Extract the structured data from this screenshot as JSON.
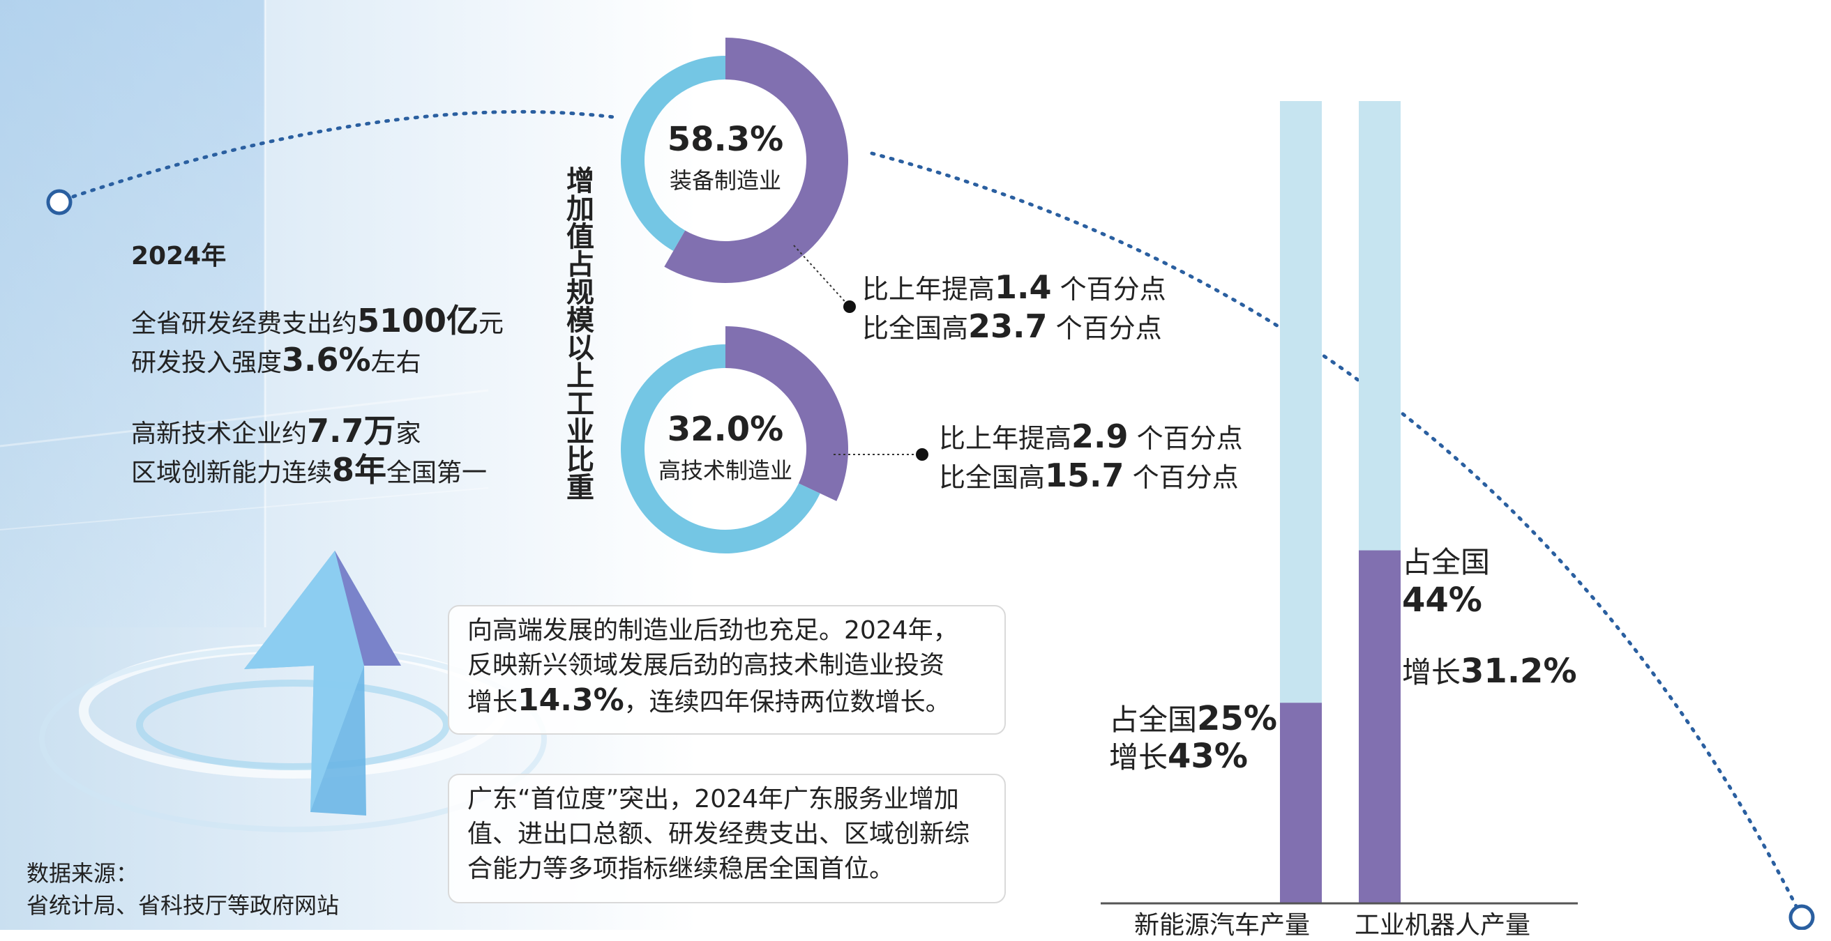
{
  "year_label": "2024年",
  "stats": {
    "line1_prefix": "全省研发经费支出约",
    "line1_value": "5100亿",
    "line1_suffix": "元",
    "line2_prefix": "研发投入强度",
    "line2_value": "3.6%",
    "line2_suffix": "左右",
    "line3_prefix": "高新技术企业约",
    "line3_value": "7.7万",
    "line3_suffix": "家",
    "line4_prefix": "区域创新能力连续",
    "line4_value": "8年",
    "line4_suffix": "全国第一"
  },
  "vertical_title": "增加值占规模以上工业比重",
  "donut_equipment": {
    "pct_text": "58.3%",
    "label": "装备制造业",
    "cmp1_prefix": "比上年提高",
    "cmp1_value": "1.4",
    "cmp1_suffix": "个百分点",
    "cmp2_prefix": "比全国高",
    "cmp2_value": "23.7",
    "cmp2_suffix": "个百分点"
  },
  "donut_hightech": {
    "pct_text": "32.0%",
    "label": "高技术制造业",
    "cmp1_prefix": "比上年提高",
    "cmp1_value": "2.9",
    "cmp1_suffix": "个百分点",
    "cmp2_prefix": "比全国高",
    "cmp2_value": "15.7",
    "cmp2_suffix": "个百分点"
  },
  "box1": {
    "line1": "向高端发展的制造业后劲也充足。2024年，",
    "line2": "反映新兴领域发展后劲的高技术制造业投资",
    "line3_prefix": "增长",
    "line3_value": "14.3%",
    "line3_suffix": "，连续四年保持两位数增长。"
  },
  "box2": {
    "text": "广东“首位度”突出，2024年广东服务业增加值、进出口总额、研发经费支出、区域创新综合能力等多项指标继续稳居全国首位。"
  },
  "bars": {
    "nev": {
      "share_prefix": "占全国",
      "share_value": "25%",
      "growth_prefix": "增长",
      "growth_value": "43%",
      "axis_label": "新能源汽车产量"
    },
    "robot": {
      "share_prefix": "占全国",
      "share_value": "44%",
      "growth_prefix": "增长",
      "growth_value": "31.2%",
      "axis_label": "工业机器人产量"
    }
  },
  "source": {
    "line1": "数据来源：",
    "line2": "省统计局、省科技厅等政府网站"
  },
  "colors": {
    "purple": "#8170b0",
    "lightblue": "#74c6e4",
    "pale_bar": "#c6e4f0",
    "dot_line": "#2a5fa0"
  },
  "chart_data": [
    {
      "type": "pie",
      "subtype": "donut",
      "categories": [
        "装备制造业"
      ],
      "values": [
        58.3
      ],
      "unit": "%",
      "title": ""
    },
    {
      "type": "pie",
      "subtype": "donut",
      "categories": [
        "高技术制造业"
      ],
      "values": [
        32.0
      ],
      "unit": "%",
      "title": ""
    },
    {
      "type": "bar",
      "categories": [
        "新能源汽车产量",
        "工业机器人产量"
      ],
      "series": [
        {
          "values": [
            25,
            44
          ]
        }
      ],
      "unit": "%",
      "ylim": [
        0,
        100
      ]
    }
  ]
}
